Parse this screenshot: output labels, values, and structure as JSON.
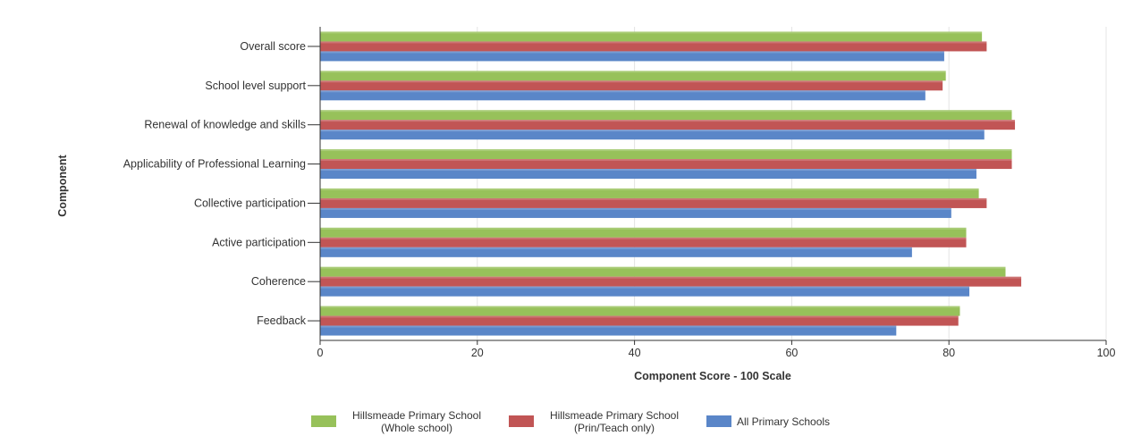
{
  "chart_data": {
    "type": "bar",
    "orientation": "horizontal",
    "categories": [
      "Overall score",
      "School level support",
      "Renewal of knowledge and skills",
      "Applicability of Professional Learning",
      "Collective participation",
      "Active participation",
      "Coherence",
      "Feedback"
    ],
    "series": [
      {
        "name": "Hillsmeade Primary School (Whole school)",
        "name_lines": [
          "Hillsmeade Primary School",
          "(Whole school)"
        ],
        "color": "#97c15a",
        "values": [
          84.2,
          79.6,
          88.0,
          88.0,
          83.8,
          82.2,
          87.2,
          81.4
        ]
      },
      {
        "name": "Hillsmeade Primary School (Prin/Teach only)",
        "name_lines": [
          "Hillsmeade Primary School",
          "(Prin/Teach only)"
        ],
        "color": "#c15555",
        "values": [
          84.8,
          79.2,
          88.4,
          88.0,
          84.8,
          82.2,
          89.2,
          81.2
        ]
      },
      {
        "name": "All Primary Schools",
        "name_lines": [
          "All Primary Schools"
        ],
        "color": "#5a86c8",
        "values": [
          79.4,
          77.0,
          84.5,
          83.5,
          80.3,
          75.3,
          82.6,
          73.3
        ]
      }
    ],
    "xlabel": "Component Score - 100 Scale",
    "ylabel": "Component",
    "xlim": [
      0,
      100
    ],
    "xticks": [
      0,
      20,
      40,
      60,
      80,
      100
    ],
    "grid": true,
    "legend": "bottom"
  }
}
